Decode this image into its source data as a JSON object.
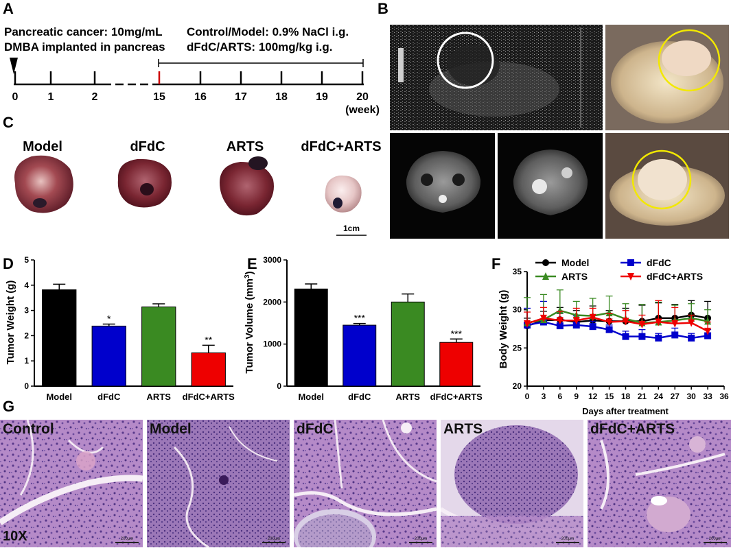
{
  "panel_labels": [
    "A",
    "B",
    "C",
    "D",
    "E",
    "F",
    "G"
  ],
  "timeline": {
    "line1_left": "Pancreatic cancer: 10mg/mL",
    "line2_left": "DMBA implanted in pancreas",
    "line1_right": "Control/Model: 0.9% NaCl i.g.",
    "line2_right": "dFdC/ARTS: 100mg/kg i.g.",
    "ticks": [
      "0",
      "1",
      "2",
      "15",
      "16",
      "17",
      "18",
      "19",
      "20"
    ],
    "unit": "(week)"
  },
  "tumors": {
    "labels": [
      "Model",
      "dFdC",
      "ARTS",
      "dFdC+ARTS"
    ],
    "scale": "1cm"
  },
  "chart_data": [
    {
      "panel": "D",
      "type": "bar",
      "categories": [
        "Model",
        "dFdC",
        "ARTS",
        "dFdC+ARTS"
      ],
      "values": [
        3.82,
        2.38,
        3.14,
        1.32
      ],
      "errors": [
        0.22,
        0.08,
        0.12,
        0.3
      ],
      "significance": [
        "",
        "*",
        "",
        "**"
      ],
      "colors": [
        "#000000",
        "#0000cc",
        "#3a8a22",
        "#ee0000"
      ],
      "ylabel": "Tumor Weight (g)",
      "ylim": [
        0,
        5
      ],
      "yticks": [
        "0",
        "1",
        "2",
        "3",
        "4",
        "5"
      ]
    },
    {
      "panel": "E",
      "type": "bar",
      "categories": [
        "Model",
        "dFdC",
        "ARTS",
        "dFdC+ARTS"
      ],
      "values": [
        2310,
        1450,
        2000,
        1040
      ],
      "errors": [
        120,
        40,
        190,
        80
      ],
      "significance": [
        "",
        "***",
        "",
        "***"
      ],
      "colors": [
        "#000000",
        "#0000cc",
        "#3a8a22",
        "#ee0000"
      ],
      "ylabel_main": "Tumor Volume (mm",
      "ylabel_sup": "3",
      "ylabel_end": ")",
      "ylim": [
        0,
        3000
      ],
      "yticks": [
        "0",
        "1000",
        "2000",
        "3000"
      ]
    },
    {
      "panel": "F",
      "type": "line",
      "x": [
        0,
        3,
        6,
        9,
        12,
        15,
        18,
        21,
        24,
        27,
        30,
        33
      ],
      "xticks": [
        "0",
        "3",
        "6",
        "9",
        "12",
        "15",
        "18",
        "21",
        "24",
        "27",
        "30",
        "33",
        "36"
      ],
      "yticks": [
        "20",
        "25",
        "30",
        "35"
      ],
      "xlim": [
        0,
        36
      ],
      "ylim": [
        20,
        35
      ],
      "xlabel": "Days after treatment",
      "ylabel": "Body Weight (g)",
      "legend_position": "top",
      "series": [
        {
          "name": "Model",
          "marker": "circle",
          "color": "#000000",
          "values": [
            27.9,
            28.6,
            28.7,
            28.4,
            28.6,
            28.5,
            28.5,
            28.5,
            28.9,
            28.9,
            29.3,
            28.9
          ],
          "errors": [
            1.0,
            1.2,
            1.6,
            1.5,
            1.9,
            1.4,
            1.7,
            2.1,
            2.0,
            1.8,
            1.9,
            2.2
          ]
        },
        {
          "name": "dFdC",
          "marker": "square",
          "color": "#0000cc",
          "values": [
            28.0,
            28.4,
            27.9,
            28.0,
            27.8,
            27.4,
            26.5,
            26.5,
            26.3,
            26.7,
            26.3,
            26.6
          ],
          "errors": [
            2.2,
            2.7,
            1.6,
            1.2,
            0.7,
            0.6,
            0.7,
            0.9,
            0.6,
            0.9,
            0.6,
            0.8
          ]
        },
        {
          "name": "ARTS",
          "marker": "triangle",
          "color": "#3a8a22",
          "values": [
            28.3,
            28.7,
            29.9,
            29.3,
            29.2,
            29.6,
            28.8,
            28.3,
            28.4,
            28.6,
            28.9,
            28.5
          ],
          "errors": [
            3.3,
            3.3,
            2.7,
            1.8,
            2.3,
            2.2,
            2.0,
            2.4,
            2.6,
            2.0,
            1.9,
            1.5
          ]
        },
        {
          "name": "dFdC+ARTS",
          "marker": "triangle-down",
          "color": "#ee0000",
          "values": [
            28.2,
            28.9,
            28.6,
            28.6,
            29.0,
            28.4,
            28.5,
            28.1,
            28.4,
            28.2,
            28.3,
            27.2
          ],
          "errors": [
            1.5,
            1.4,
            1.2,
            1.6,
            1.2,
            1.1,
            1.4,
            1.2,
            2.8,
            2.1,
            1.0,
            1.2
          ]
        }
      ]
    }
  ],
  "histology": {
    "labels": [
      "Control",
      "Model",
      "dFdC",
      "ARTS",
      "dFdC+ARTS"
    ],
    "magnification": "10X",
    "scale": "200μm"
  }
}
